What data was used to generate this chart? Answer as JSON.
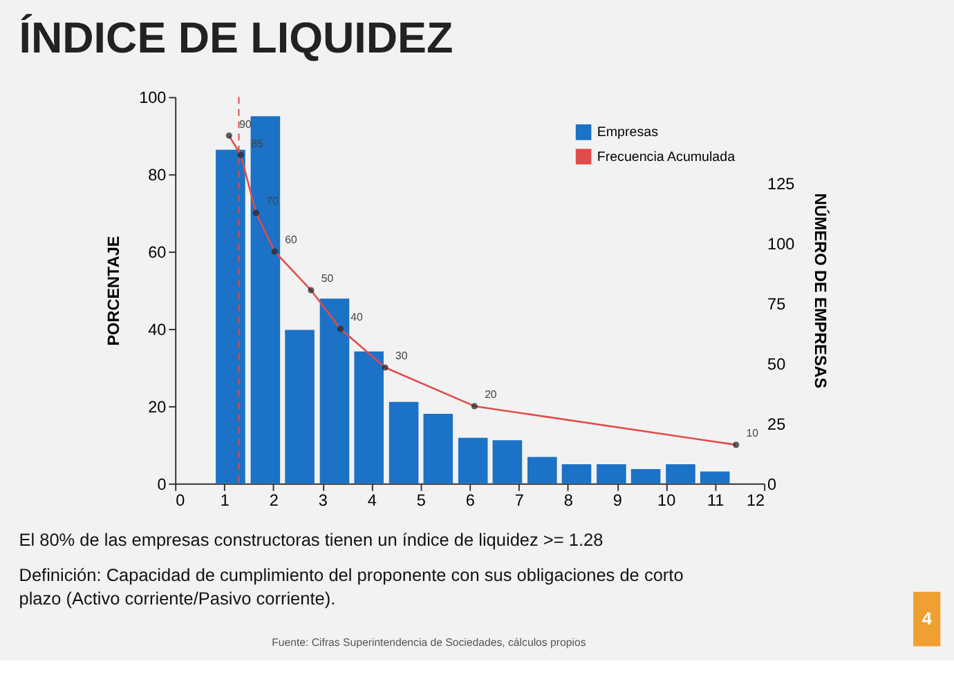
{
  "chart_data": {
    "type": "bar",
    "title": "ÍNDICE DE LIQUIDEZ",
    "xlim": [
      0,
      12
    ],
    "xticks": [
      0,
      1,
      2,
      3,
      4,
      5,
      6,
      7,
      8,
      9,
      10,
      11,
      12
    ],
    "ylabel": "PORCENTAJE",
    "ylim": [
      0,
      100
    ],
    "yticks": [
      0,
      20,
      40,
      60,
      80,
      100
    ],
    "y2label": "NÚMERO DE EMPRESAS",
    "y2lim": [
      0,
      161
    ],
    "y2ticks": [
      0,
      25,
      50,
      75,
      100,
      125
    ],
    "series": [
      {
        "name": "Empresas",
        "type": "bar",
        "axis": "y2",
        "color": "#1b72c6",
        "x": [
          1.13,
          1.84,
          2.54,
          3.25,
          3.95,
          4.66,
          5.36,
          6.07,
          6.77,
          7.48,
          8.18,
          8.89,
          9.59,
          10.3,
          11.0
        ],
        "values": [
          139,
          153,
          64,
          77,
          55,
          34,
          29,
          19,
          18,
          11,
          8,
          8,
          6,
          8,
          5
        ]
      },
      {
        "name": "Frecuencia Acumulada",
        "type": "line",
        "color": "#e04b4b",
        "marker": "circle",
        "data_labels": true,
        "x": [
          1.1,
          1.34,
          1.65,
          2.03,
          2.77,
          3.37,
          4.28,
          6.1,
          11.43
        ],
        "values": [
          90,
          85,
          70,
          60,
          50,
          40,
          30,
          20,
          10
        ]
      }
    ],
    "ref_lines": [
      {
        "axis": "x",
        "value": 1.3,
        "color": "#e04b4b",
        "line_style": "dashed"
      }
    ],
    "grid": false,
    "legend": "top right",
    "annotations": [
      "El 80% de las empresas constructoras tienen un índice de liquidez >= 1.28",
      "Definición: Capacidad de cumplimiento del proponente con sus obligaciones de corto plazo (Activo corriente/Pasivo corriente).",
      "Fuente: Cifras Superintendencia de Sociedades, cálculos propios",
      "4"
    ]
  }
}
